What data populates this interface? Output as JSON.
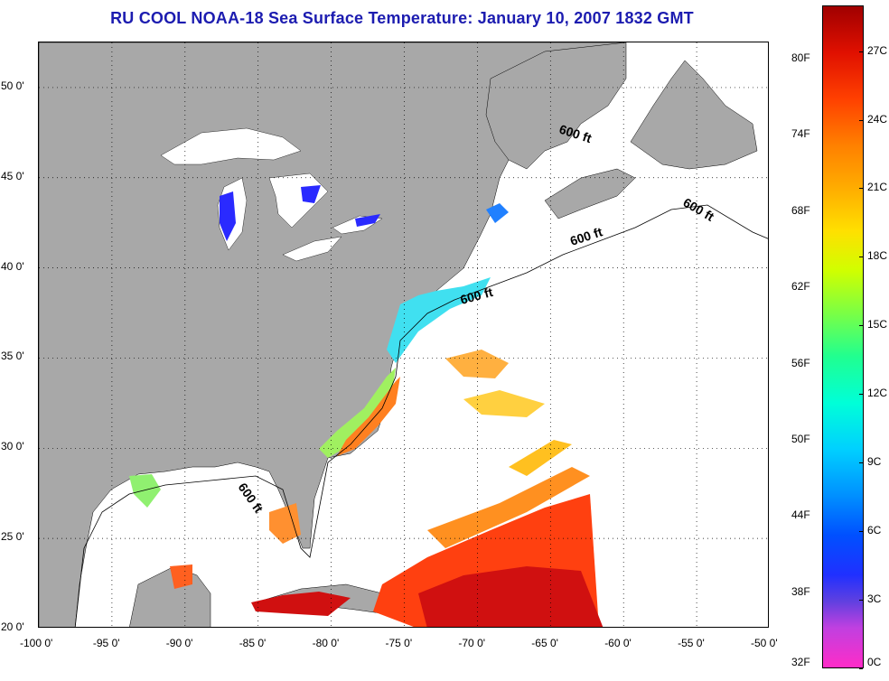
{
  "title": "RU COOL  NOAA-18  Sea Surface Temperature:  January 10, 2007 1832 GMT",
  "map": {
    "lon_labels": [
      "-100 0'",
      "-95 0'",
      "-90 0'",
      "-85 0'",
      "-80 0'",
      "-75 0'",
      "-70 0'",
      "-65 0'",
      "-60 0'",
      "-55 0'",
      "-50 0'"
    ],
    "lon_values": [
      -100,
      -95,
      -90,
      -85,
      -80,
      -75,
      -70,
      -65,
      -60,
      -55,
      -50
    ],
    "lat_labels": [
      "50 0'",
      "45 0'",
      "40 0'",
      "35 0'",
      "30 0'",
      "25 0'",
      "20 0'"
    ],
    "lat_values": [
      50,
      45,
      40,
      35,
      30,
      25,
      20
    ],
    "lon_range": [
      -100,
      -50
    ],
    "lat_range": [
      20,
      52.5
    ],
    "gridlines": "dotted",
    "contour_labels": [
      "600 ft",
      "600 ft",
      "600 ft",
      "600 ft",
      "600 ft"
    ],
    "land_color": "#a8a8a8",
    "cloud_color": "#ffffff"
  },
  "colorbar": {
    "fahrenheit_labels": [
      "80F",
      "74F",
      "68F",
      "62F",
      "56F",
      "50F",
      "44F",
      "38F",
      "32F"
    ],
    "fahrenheit_values": [
      80,
      74,
      68,
      62,
      56,
      50,
      44,
      38,
      32
    ],
    "celsius_labels": [
      "27C",
      "24C",
      "21C",
      "18C",
      "15C",
      "12C",
      "9C",
      "6C",
      "3C",
      "0C"
    ],
    "celsius_values": [
      27,
      24,
      21,
      18,
      15,
      12,
      9,
      6,
      3,
      0
    ],
    "range_c": [
      0,
      29
    ]
  }
}
